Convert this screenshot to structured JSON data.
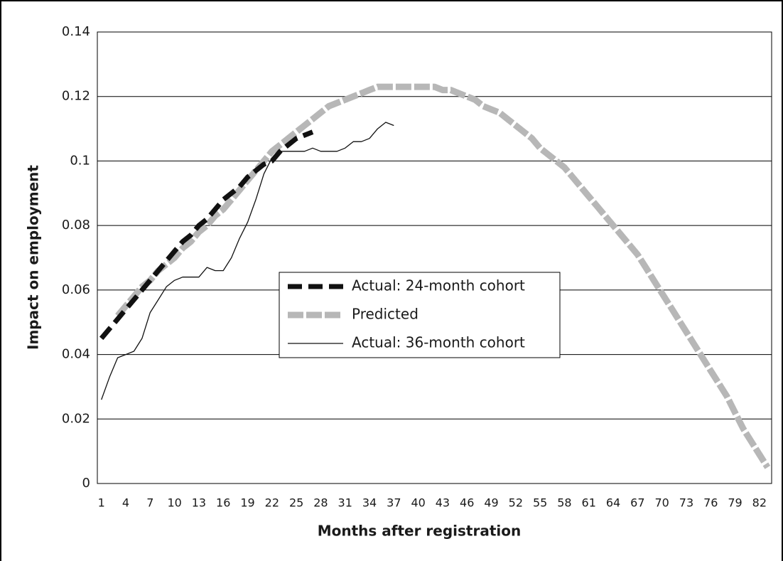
{
  "chart_data": {
    "type": "line",
    "x_label": "Months after registration",
    "y_label": "Impact on employment",
    "categories": [
      1,
      null,
      null,
      4,
      null,
      null,
      7,
      null,
      null,
      10,
      null,
      null,
      13,
      null,
      null,
      16,
      null,
      null,
      19,
      null,
      null,
      22,
      null,
      null,
      25,
      null,
      null,
      28,
      null,
      null,
      31,
      null,
      null,
      34,
      null,
      null,
      37,
      null,
      null,
      40,
      null,
      null,
      43,
      null,
      null,
      46,
      null,
      null,
      49,
      null,
      null,
      52,
      null,
      null,
      55,
      null,
      null,
      58,
      null,
      null,
      61,
      null,
      null,
      64,
      null,
      null,
      67,
      null,
      null,
      70,
      null,
      null,
      73,
      null,
      null,
      76,
      null,
      null,
      79,
      null,
      null,
      82,
      null
    ],
    "ylim": [
      0,
      0.14
    ],
    "yticks": [
      0,
      0.02,
      0.04,
      0.06,
      0.08,
      0.1,
      0.12,
      0.14
    ],
    "grid": true,
    "legend": "center",
    "series": [
      {
        "name": "Actual: 24-month cohort",
        "color": "#111111",
        "style": "dashed",
        "values": [
          0.045,
          0.048,
          0.051,
          0.054,
          0.057,
          0.06,
          0.063,
          0.066,
          0.069,
          0.072,
          0.075,
          0.077,
          0.08,
          0.082,
          0.085,
          0.088,
          0.09,
          0.092,
          0.095,
          0.097,
          0.099,
          0.1,
          0.103,
          0.105,
          0.107,
          0.108,
          0.109,
          null,
          null,
          null,
          null,
          null,
          null,
          null,
          null,
          null,
          null,
          null,
          null,
          null,
          null,
          null,
          null,
          null,
          null,
          null,
          null,
          null,
          null,
          null,
          null,
          null,
          null,
          null,
          null,
          null,
          null,
          null,
          null,
          null,
          null,
          null,
          null,
          null,
          null,
          null,
          null,
          null,
          null,
          null,
          null,
          null,
          null,
          null,
          null,
          null,
          null,
          null,
          null,
          null,
          null,
          null,
          null
        ]
      },
      {
        "name": "Predicted",
        "color": "#b7b7b7",
        "style": "thick",
        "values": [
          null,
          null,
          0.052,
          0.055,
          0.058,
          0.061,
          0.063,
          0.066,
          0.068,
          0.07,
          0.073,
          0.075,
          0.078,
          0.08,
          0.083,
          0.085,
          0.088,
          0.091,
          0.094,
          0.097,
          0.1,
          0.103,
          0.105,
          0.107,
          0.109,
          0.111,
          0.113,
          0.115,
          0.117,
          0.118,
          0.119,
          0.12,
          0.121,
          0.122,
          0.123,
          0.123,
          0.123,
          0.123,
          0.123,
          0.123,
          0.123,
          0.123,
          0.122,
          0.122,
          0.121,
          0.12,
          0.119,
          0.117,
          0.116,
          0.115,
          0.113,
          0.111,
          0.109,
          0.107,
          0.104,
          0.102,
          0.1,
          0.098,
          0.095,
          0.092,
          0.089,
          0.086,
          0.083,
          0.08,
          0.077,
          0.074,
          0.071,
          0.067,
          0.063,
          0.059,
          0.055,
          0.051,
          0.047,
          0.043,
          0.039,
          0.035,
          0.031,
          0.027,
          0.022,
          0.017,
          0.013,
          0.009,
          0.005
        ]
      },
      {
        "name": "Actual: 36-month cohort",
        "color": "#111111",
        "style": "thin",
        "values": [
          0.026,
          0.033,
          0.039,
          0.04,
          0.041,
          0.045,
          0.053,
          0.057,
          0.061,
          0.063,
          0.064,
          0.064,
          0.064,
          0.067,
          0.066,
          0.066,
          0.07,
          0.076,
          0.081,
          0.088,
          0.096,
          0.101,
          0.103,
          0.103,
          0.103,
          0.103,
          0.104,
          0.103,
          0.103,
          0.103,
          0.104,
          0.106,
          0.106,
          0.107,
          0.11,
          0.112,
          0.111,
          null,
          null,
          null,
          null,
          null,
          null,
          null,
          null,
          null,
          null,
          null,
          null,
          null,
          null,
          null,
          null,
          null,
          null,
          null,
          null,
          null,
          null,
          null,
          null,
          null,
          null,
          null,
          null,
          null,
          null,
          null,
          null,
          null,
          null,
          null,
          null,
          null,
          null,
          null,
          null,
          null,
          null,
          null,
          null,
          null,
          null
        ]
      }
    ]
  }
}
